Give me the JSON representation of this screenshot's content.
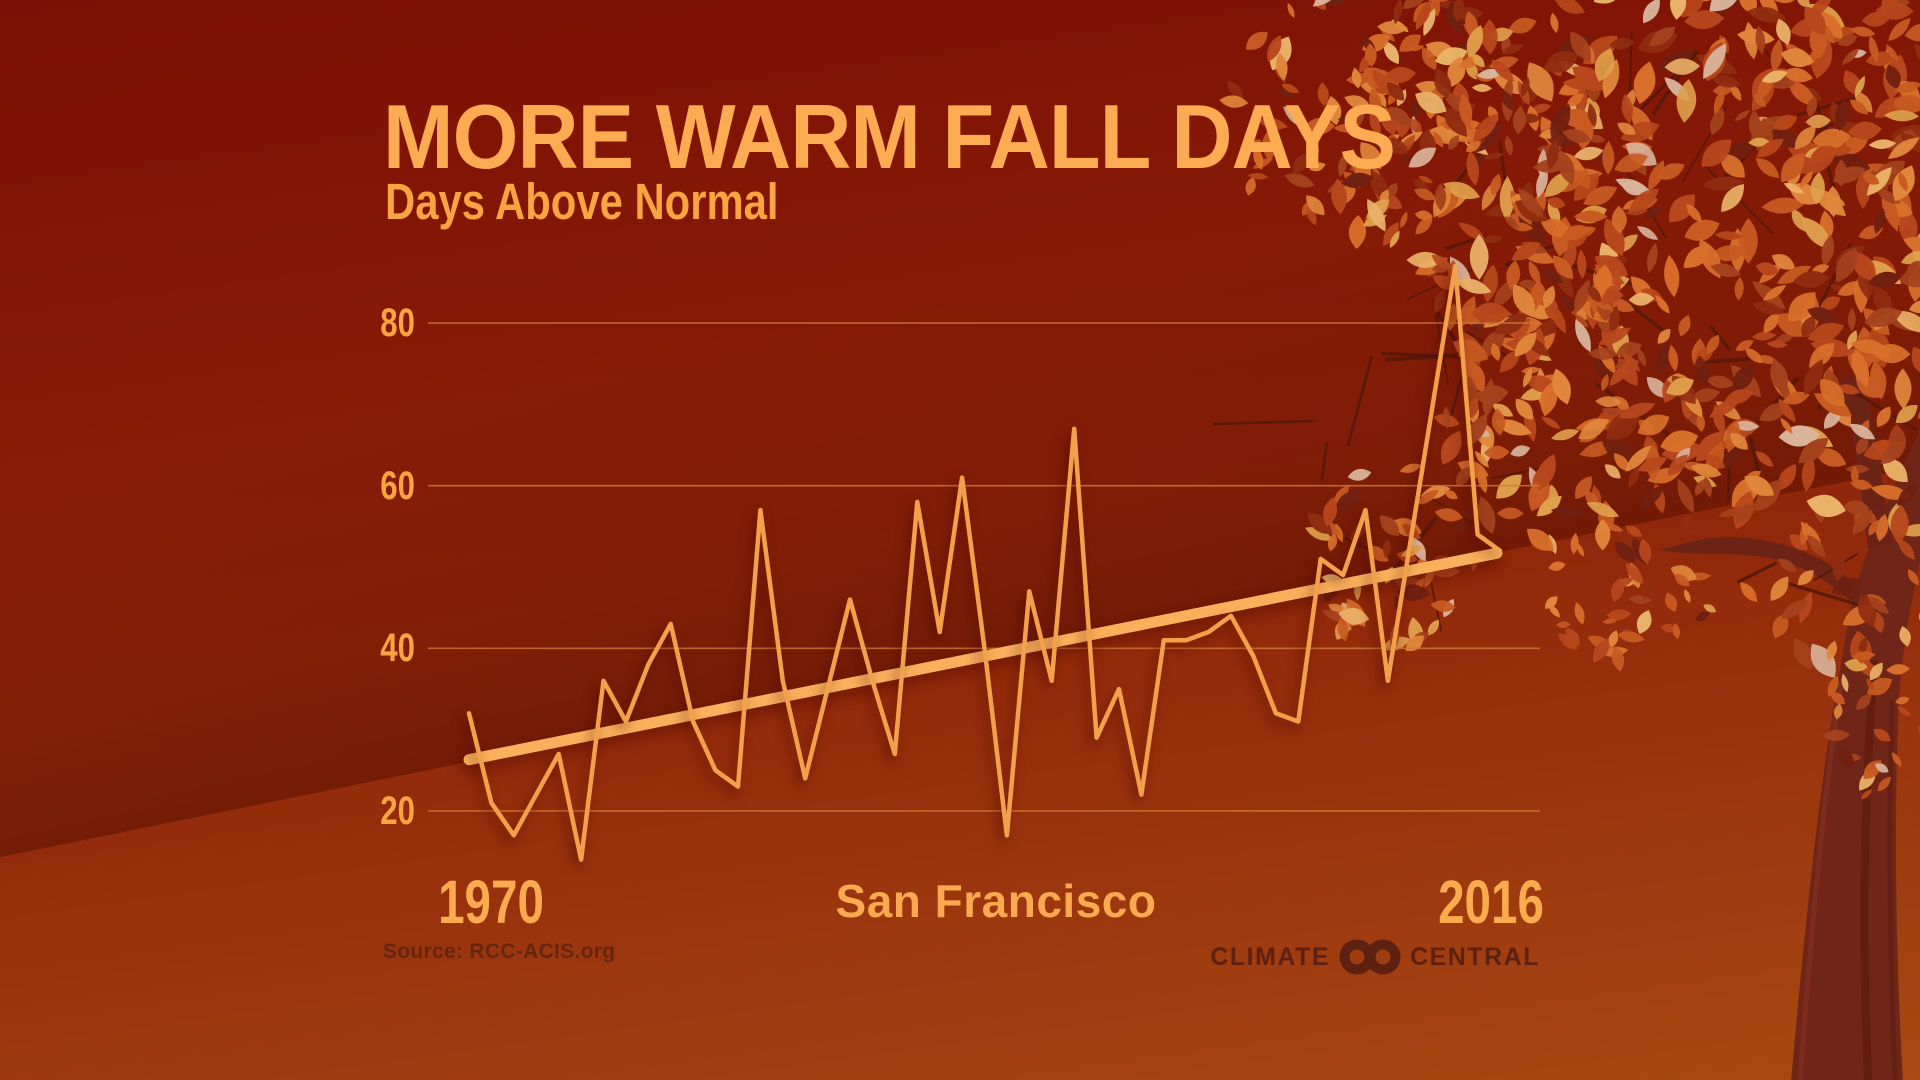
{
  "header": {
    "title": "MORE WARM FALL DAYS",
    "subtitle": "Days Above Normal"
  },
  "footer": {
    "x_start_label": "1970",
    "x_end_label": "2016",
    "location_label": "San Francisco",
    "source_text": "Source: RCC-ACIS.org",
    "logo_left": "CLIMATE",
    "logo_right": "CENTRAL"
  },
  "colors": {
    "background_top": "#7c0f05",
    "background_bottom": "#a84a12",
    "title_text": "#fbac52",
    "axis_text": "#f9a440",
    "gridline": "#d07a35",
    "data_line": "#f3a04b",
    "trend_line": "#f9b05c",
    "source_text": "#652610",
    "logo_text": "#5e2011",
    "trunk": "#6f2517",
    "leaf_palette": [
      "#b8471c",
      "#c85a22",
      "#a4421d",
      "#d96f2b",
      "#8f2d10",
      "#e0873c",
      "#dfa04c",
      "#eab268",
      "#d9b39b",
      "#6f2010"
    ]
  },
  "chart_data": {
    "type": "line",
    "title": "MORE WARM FALL DAYS",
    "subtitle": "Days Above Normal",
    "series_label": "San Francisco",
    "ylabel": "Days Above Normal",
    "xlabel": "",
    "grid": true,
    "legend_position": "none",
    "x_range": [
      1970,
      2016
    ],
    "ylim": [
      0,
      90
    ],
    "yticks": [
      20,
      40,
      60,
      80
    ],
    "years": [
      1970,
      1971,
      1972,
      1973,
      1974,
      1975,
      1976,
      1977,
      1978,
      1979,
      1980,
      1981,
      1982,
      1983,
      1984,
      1985,
      1986,
      1987,
      1988,
      1989,
      1990,
      1991,
      1992,
      1993,
      1994,
      1995,
      1996,
      1997,
      1998,
      1999,
      2000,
      2001,
      2002,
      2003,
      2004,
      2005,
      2006,
      2007,
      2008,
      2009,
      2010,
      2011,
      2012,
      2013,
      2014,
      2015,
      2016
    ],
    "values": [
      32,
      21,
      17,
      22,
      27,
      14,
      36,
      31,
      38,
      43,
      31,
      25,
      23,
      57,
      36,
      24,
      35,
      46,
      36,
      27,
      58,
      42,
      61,
      40,
      17,
      47,
      36,
      67,
      29,
      35,
      22,
      41,
      41,
      42,
      44,
      39,
      32,
      31,
      51,
      49,
      57,
      36,
      53,
      70,
      87,
      54,
      52
    ],
    "trend": {
      "x1": 1970,
      "v1": 26.3,
      "x2": 2016,
      "v2": 51.7
    },
    "source": "RCC-ACIS.org"
  }
}
